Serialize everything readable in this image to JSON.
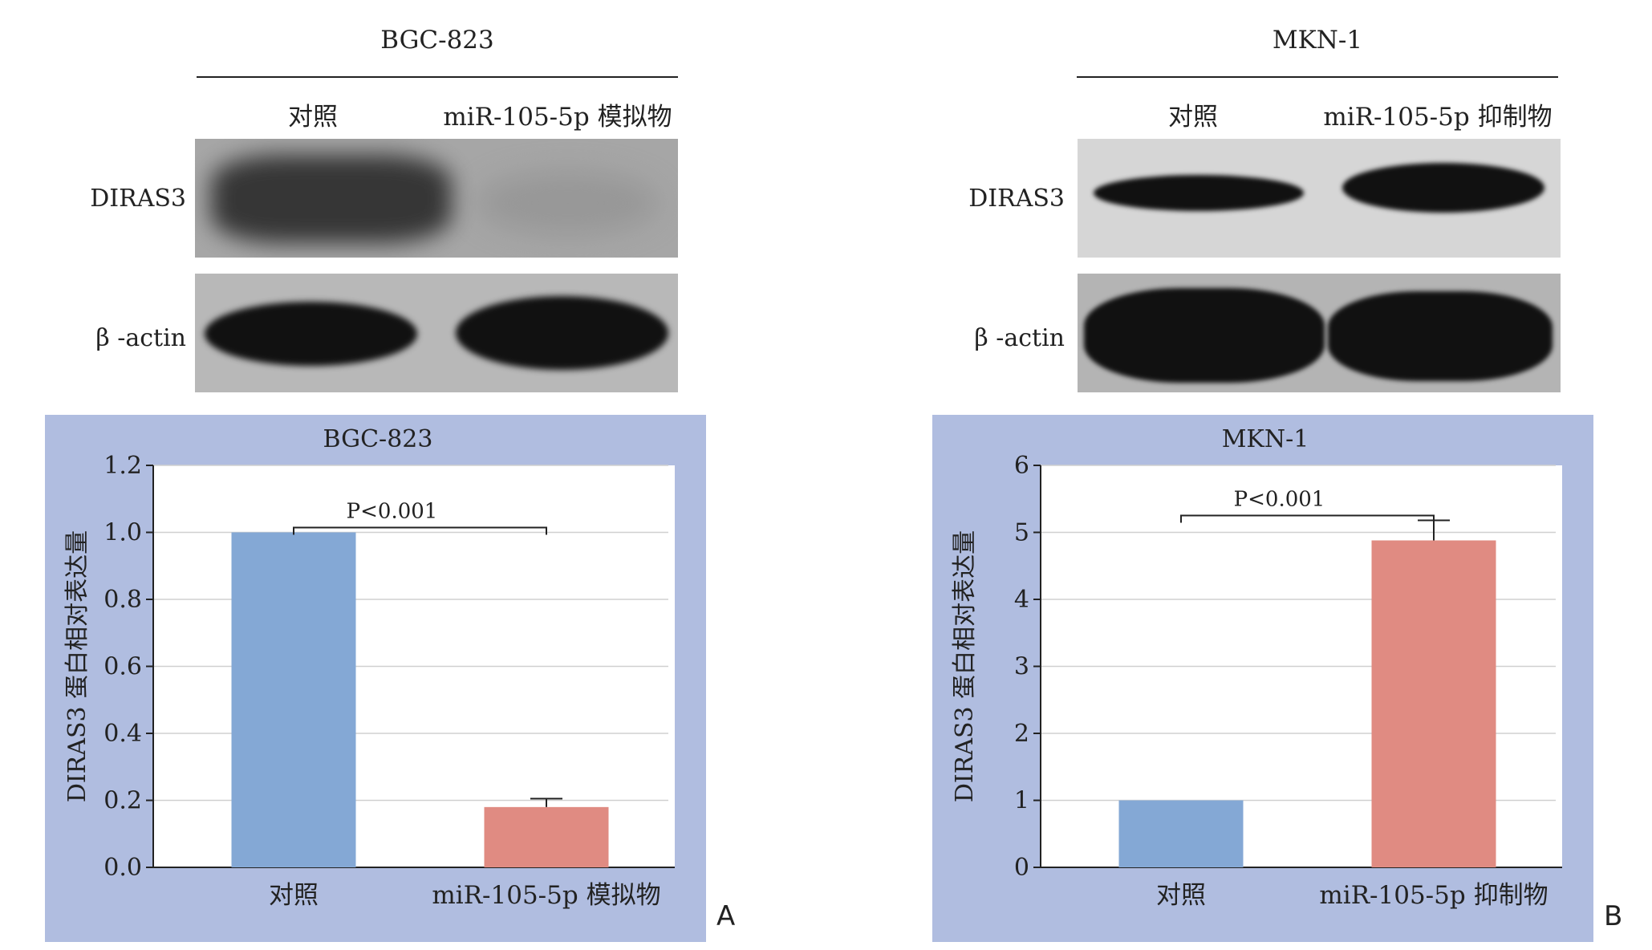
{
  "panel_a": {
    "letter": "A",
    "cell_line": "BGC-823",
    "lanes": [
      "对照",
      "miR-105-5p 模拟物"
    ],
    "blot_rows": [
      "DIRAS3",
      "β -actin"
    ]
  },
  "panel_b": {
    "letter": "B",
    "cell_line": "MKN-1",
    "lanes": [
      "对照",
      "miR-105-5p 抑制物"
    ],
    "blot_rows": [
      "DIRAS3",
      "β -actin"
    ]
  },
  "chart_data": [
    {
      "type": "bar",
      "title": "BGC-823",
      "categories": [
        "对照",
        "miR-105-5p 模拟物"
      ],
      "values": [
        1.0,
        0.18
      ],
      "errors": [
        0,
        0.025
      ],
      "ylabel": "DIRAS3 蛋白相对表达量",
      "xlabel": "",
      "ylim": [
        0,
        1.2
      ],
      "yticks": [
        "0.0",
        "0.2",
        "0.4",
        "0.6",
        "0.8",
        "1.0",
        "1.2"
      ],
      "significance": "P<0.001",
      "colors": [
        "#84a8d5",
        "#e08b82"
      ],
      "grid": true
    },
    {
      "type": "bar",
      "title": "MKN-1",
      "categories": [
        "对照",
        "miR-105-5p 抑制物"
      ],
      "values": [
        1.0,
        4.88
      ],
      "errors": [
        0,
        0.3
      ],
      "ylabel": "DIRAS3 蛋白相对表达量",
      "xlabel": "",
      "ylim": [
        0,
        6
      ],
      "yticks": [
        "0",
        "1",
        "2",
        "3",
        "4",
        "5",
        "6"
      ],
      "significance": "P<0.001",
      "colors": [
        "#84a8d5",
        "#e08b82"
      ],
      "grid": true
    }
  ]
}
